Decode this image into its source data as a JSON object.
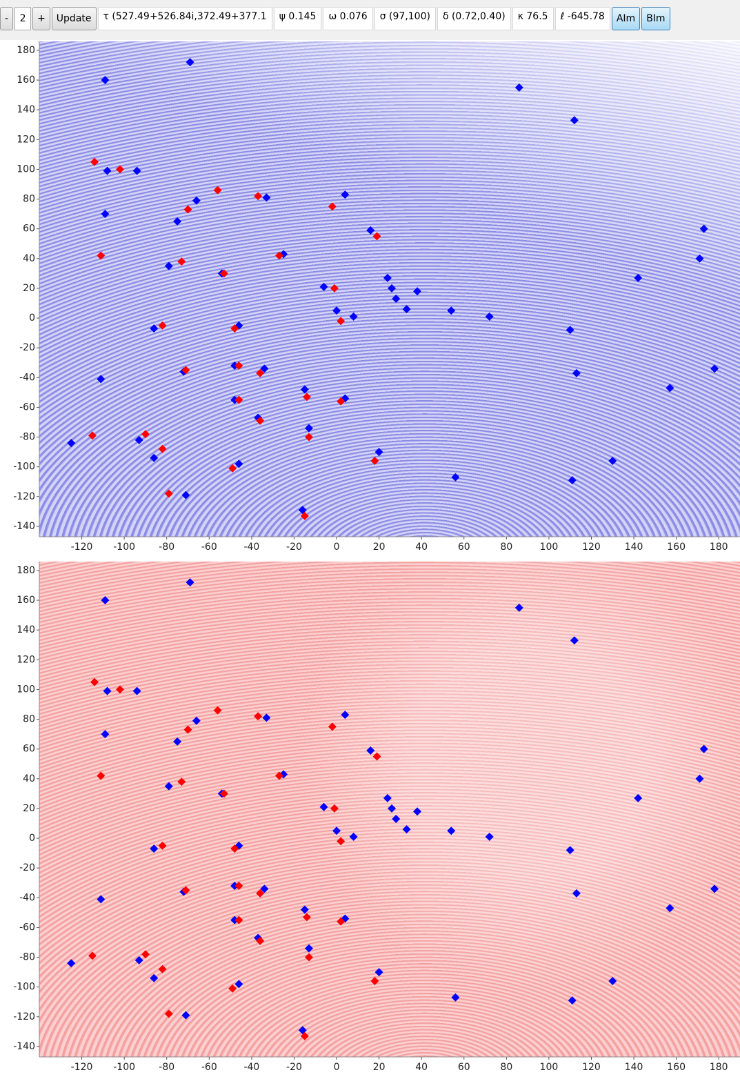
{
  "toolbar": {
    "minus": "-",
    "count": "2",
    "plus": "+",
    "update": "Update",
    "tau": "τ (527.49+526.84i,372.49+377.1",
    "psi": "ψ 0.145",
    "omega": "ω 0.076",
    "sigma": "σ (97,100)",
    "delta": "δ (0.72,0.40)",
    "kappa": "κ 76.5",
    "ell": "ℓ -645.78",
    "aim": "AIm",
    "bim": "BIm"
  },
  "chart_data": [
    {
      "type": "scatter",
      "xlim": [
        -140,
        190
      ],
      "ylim": [
        -147,
        186
      ],
      "xticks": [
        -120,
        -100,
        -80,
        -60,
        -40,
        -20,
        0,
        20,
        40,
        60,
        80,
        100,
        120,
        140,
        160,
        180
      ],
      "yticks": [
        -140,
        -120,
        -100,
        -80,
        -60,
        -40,
        -20,
        0,
        20,
        40,
        60,
        80,
        100,
        120,
        140,
        160,
        180
      ],
      "series": [
        {
          "color": "#0000ff",
          "x": [
            -109,
            -69,
            86,
            112,
            -108,
            -94,
            -109,
            -66,
            -75,
            -33,
            4,
            16,
            173,
            171,
            142,
            -79,
            -54,
            -25,
            -6,
            24,
            26,
            28,
            33,
            38,
            54,
            72,
            0,
            8,
            -86,
            -46,
            110,
            -111,
            -72,
            -48,
            -34,
            113,
            178,
            157,
            -15,
            -48,
            4,
            -37,
            -13,
            -125,
            -93,
            -86,
            -46,
            20,
            56,
            130,
            111,
            -71,
            -16
          ],
          "values": [
            160,
            172,
            155,
            133,
            99,
            99,
            70,
            79,
            65,
            81,
            83,
            59,
            60,
            40,
            27,
            35,
            30,
            43,
            21,
            27,
            20,
            13,
            6,
            18,
            5,
            1,
            5,
            1,
            -7,
            -5,
            -8,
            -41,
            -36,
            -32,
            -34,
            -37,
            -34,
            -47,
            -48,
            -55,
            -54,
            -67,
            -74,
            -84,
            -82,
            -94,
            -98,
            -90,
            -107,
            -96,
            -109,
            -119,
            -129
          ]
        },
        {
          "color": "#ff0000",
          "x": [
            -114,
            -102,
            -56,
            -70,
            -37,
            -2,
            19,
            -111,
            -73,
            -53,
            -27,
            -1,
            2,
            -82,
            -48,
            -71,
            -46,
            -36,
            -14,
            -46,
            2,
            -36,
            -13,
            -115,
            -90,
            -82,
            -49,
            18,
            -79,
            -15
          ],
          "values": [
            105,
            100,
            86,
            73,
            82,
            75,
            55,
            42,
            38,
            30,
            42,
            20,
            -2,
            -5,
            -7,
            -35,
            -32,
            -37,
            -53,
            -55,
            -56,
            -69,
            -80,
            -79,
            -78,
            -88,
            -101,
            -96,
            -118,
            -133
          ]
        }
      ]
    },
    {
      "type": "scatter",
      "xlim": [
        -140,
        190
      ],
      "ylim": [
        -147,
        186
      ],
      "xticks": [
        -120,
        -100,
        -80,
        -60,
        -40,
        -20,
        0,
        20,
        40,
        60,
        80,
        100,
        120,
        140,
        160,
        180
      ],
      "yticks": [
        -140,
        -120,
        -100,
        -80,
        -60,
        -40,
        -20,
        0,
        20,
        40,
        60,
        80,
        100,
        120,
        140,
        160,
        180
      ],
      "series": [
        {
          "color": "#0000ff",
          "x": [
            -109,
            -69,
            86,
            112,
            -108,
            -94,
            -109,
            -66,
            -75,
            -33,
            4,
            16,
            173,
            171,
            142,
            -79,
            -54,
            -25,
            -6,
            24,
            26,
            28,
            33,
            38,
            54,
            72,
            0,
            8,
            -86,
            -46,
            110,
            -111,
            -72,
            -48,
            -34,
            113,
            178,
            157,
            -15,
            -48,
            4,
            -37,
            -13,
            -125,
            -93,
            -86,
            -46,
            20,
            56,
            130,
            111,
            -71,
            -16
          ],
          "values": [
            160,
            172,
            155,
            133,
            99,
            99,
            70,
            79,
            65,
            81,
            83,
            59,
            60,
            40,
            27,
            35,
            30,
            43,
            21,
            27,
            20,
            13,
            6,
            18,
            5,
            1,
            5,
            1,
            -7,
            -5,
            -8,
            -41,
            -36,
            -32,
            -34,
            -37,
            -34,
            -47,
            -48,
            -55,
            -54,
            -67,
            -74,
            -84,
            -82,
            -94,
            -98,
            -90,
            -107,
            -96,
            -109,
            -119,
            -129
          ]
        },
        {
          "color": "#ff0000",
          "x": [
            -114,
            -102,
            -56,
            -70,
            -37,
            -2,
            19,
            -111,
            -73,
            -53,
            -27,
            -1,
            2,
            -82,
            -48,
            -71,
            -46,
            -36,
            -14,
            -46,
            2,
            -36,
            -13,
            -115,
            -90,
            -82,
            -49,
            18,
            -79,
            -15
          ],
          "values": [
            105,
            100,
            86,
            73,
            82,
            75,
            55,
            42,
            38,
            30,
            42,
            20,
            -2,
            -5,
            -7,
            -35,
            -32,
            -37,
            -53,
            -55,
            -56,
            -69,
            -80,
            -79,
            -78,
            -88,
            -101,
            -96,
            -118,
            -133
          ]
        }
      ]
    }
  ]
}
